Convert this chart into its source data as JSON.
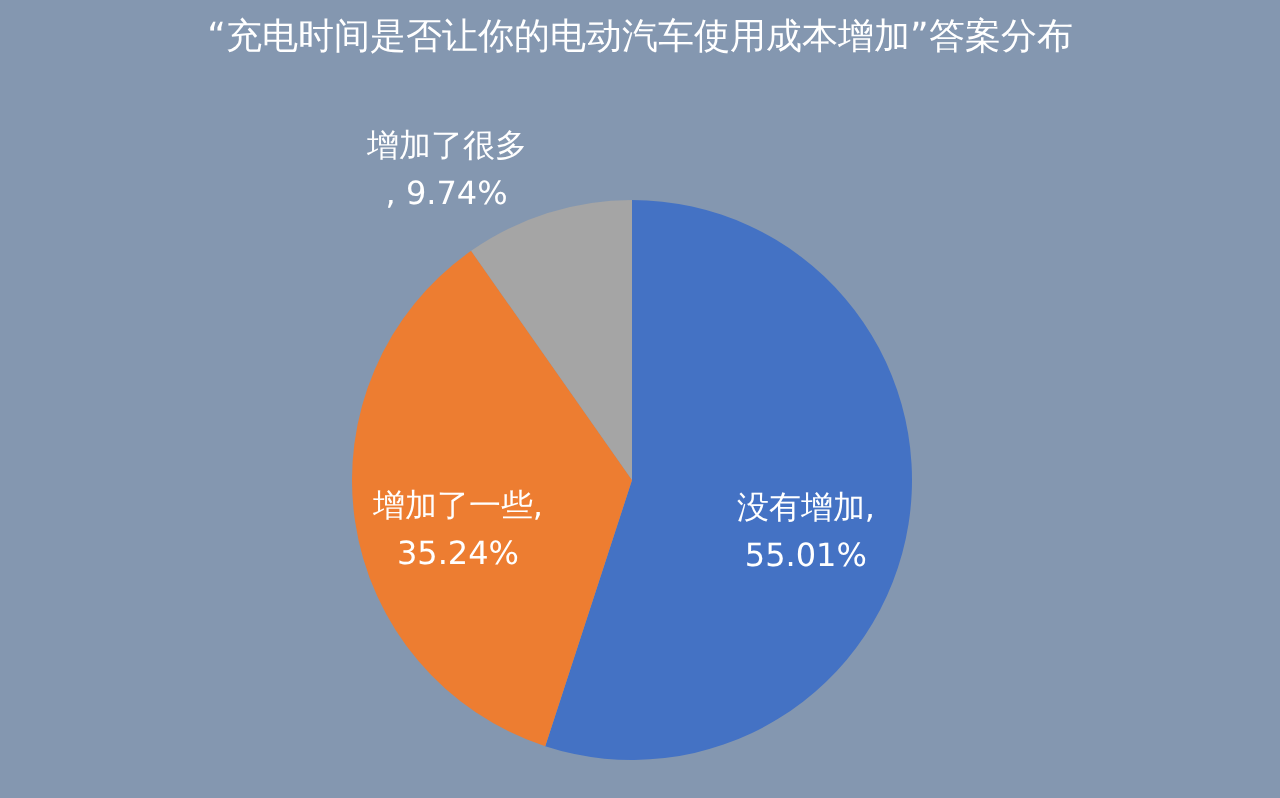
{
  "chart_data": {
    "type": "pie",
    "title": "“充电时间是否让你的电动汽车使用成本增加”答案分布",
    "categories": [
      "没有增加",
      "增加了一些",
      "增加了很多"
    ],
    "values": [
      55.01,
      35.24,
      9.74
    ],
    "colors": [
      "#4472c4",
      "#ed7d31",
      "#a5a5a5"
    ],
    "value_labels": [
      ",\n55.01%",
      ",\n35.24%",
      "\n, 9.74%"
    ],
    "legend": false
  }
}
